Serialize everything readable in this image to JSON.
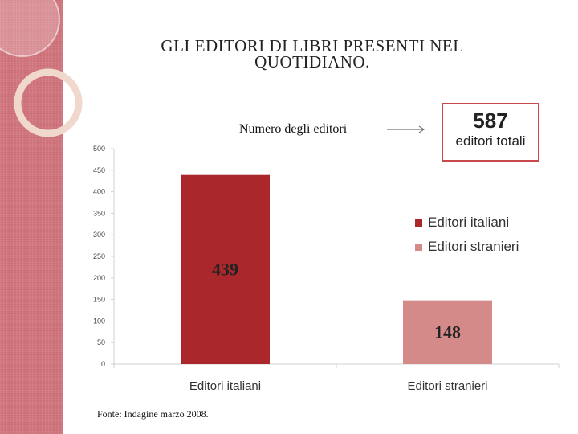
{
  "title": "GLI EDITORI DI LIBRI PRESENTI NEL QUOTIDIANO.",
  "annotation": "Numero degli editori",
  "total": {
    "value": "587",
    "label": "editori totali"
  },
  "source": "Fonte: Indagine marzo 2008.",
  "colors": {
    "italiani": "#aa272b",
    "stranieri": "#d58a8a",
    "side_band": "#d1727a",
    "axis": "#d0d0d0"
  },
  "chart_data": {
    "type": "bar",
    "categories": [
      "Editori italiani",
      "Editori stranieri"
    ],
    "values": [
      439,
      148
    ],
    "data_labels": [
      "439",
      "148"
    ],
    "ylim": [
      0,
      500
    ],
    "yticks": [
      0,
      50,
      100,
      150,
      200,
      250,
      300,
      350,
      400,
      450,
      500
    ],
    "legend": [
      "Editori italiani",
      "Editori stranieri"
    ],
    "legend_position": "right",
    "grid": false
  }
}
